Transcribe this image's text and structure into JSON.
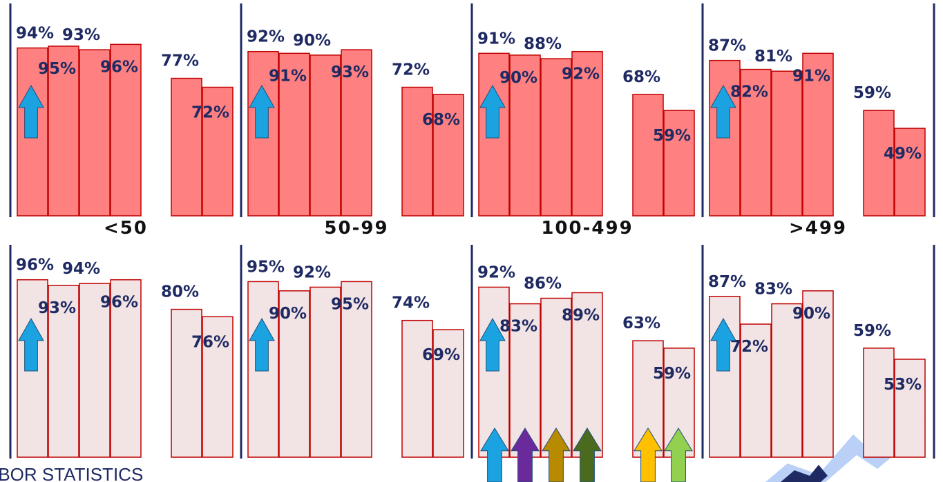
{
  "footer": {
    "text": "ABOR STATISTICS"
  },
  "colors": {
    "top_bar_fill": "#ff8080",
    "top_bar_stroke": "#c00000",
    "bottom_bar_fill": "#f2e4e4",
    "bottom_bar_stroke": "#c00000",
    "divider": "#1f2a63",
    "label": "#1f2a63",
    "watermark": "#a9c4f5"
  },
  "legend_arrows": [
    {
      "icon": "up-arrow-icon",
      "color": "#1aa3e0"
    },
    {
      "icon": "up-arrow-icon",
      "color": "#6a2a9c"
    },
    {
      "icon": "up-arrow-icon",
      "color": "#b88a00"
    },
    {
      "icon": "up-arrow-icon",
      "color": "#4a6b1e"
    },
    {
      "icon": "up-arrow-icon",
      "color": "#ffc000"
    },
    {
      "icon": "up-arrow-icon",
      "color": "#92d050"
    }
  ],
  "chart_data": [
    {
      "type": "bar",
      "panel": "top",
      "categories": [
        "<50",
        "50-99",
        "100-499",
        ">499"
      ],
      "ylim": [
        0,
        100
      ],
      "groups": [
        {
          "label": "<50",
          "values": [
            94,
            95,
            93,
            96,
            77,
            72
          ],
          "labels": [
            "94%",
            "95%",
            "93%",
            "96%",
            "77%",
            "72%"
          ]
        },
        {
          "label": "50-99",
          "values": [
            92,
            91,
            90,
            93,
            72,
            68
          ],
          "labels": [
            "92%",
            "91%",
            "90%",
            "93%",
            "72%",
            "68%"
          ]
        },
        {
          "label": "100-499",
          "values": [
            91,
            90,
            88,
            92,
            68,
            59
          ],
          "labels": [
            "91%",
            "90%",
            "88%",
            "92%",
            "68%",
            "59%"
          ]
        },
        {
          "label": ">499",
          "values": [
            87,
            82,
            81,
            91,
            59,
            49
          ],
          "labels": [
            "87%",
            "82%",
            "81%",
            "91%",
            "59%",
            "49%"
          ]
        }
      ]
    },
    {
      "type": "bar",
      "panel": "bottom",
      "categories": [
        "<50",
        "50-99",
        "100-499",
        ">499"
      ],
      "ylim": [
        0,
        100
      ],
      "groups": [
        {
          "label": "<50",
          "values": [
            96,
            93,
            94,
            96,
            80,
            76
          ],
          "labels": [
            "96%",
            "93%",
            "94%",
            "96%",
            "80%",
            "76%"
          ]
        },
        {
          "label": "50-99",
          "values": [
            95,
            90,
            92,
            95,
            74,
            69
          ],
          "labels": [
            "95%",
            "90%",
            "92%",
            "95%",
            "74%",
            "69%"
          ]
        },
        {
          "label": "100-499",
          "values": [
            92,
            83,
            86,
            89,
            63,
            59
          ],
          "labels": [
            "92%",
            "83%",
            "86%",
            "89%",
            "63%",
            "59%"
          ]
        },
        {
          "label": ">499",
          "values": [
            87,
            72,
            83,
            90,
            59,
            53
          ],
          "labels": [
            "87%",
            "72%",
            "83%",
            "90%",
            "59%",
            "53%"
          ]
        }
      ]
    }
  ]
}
